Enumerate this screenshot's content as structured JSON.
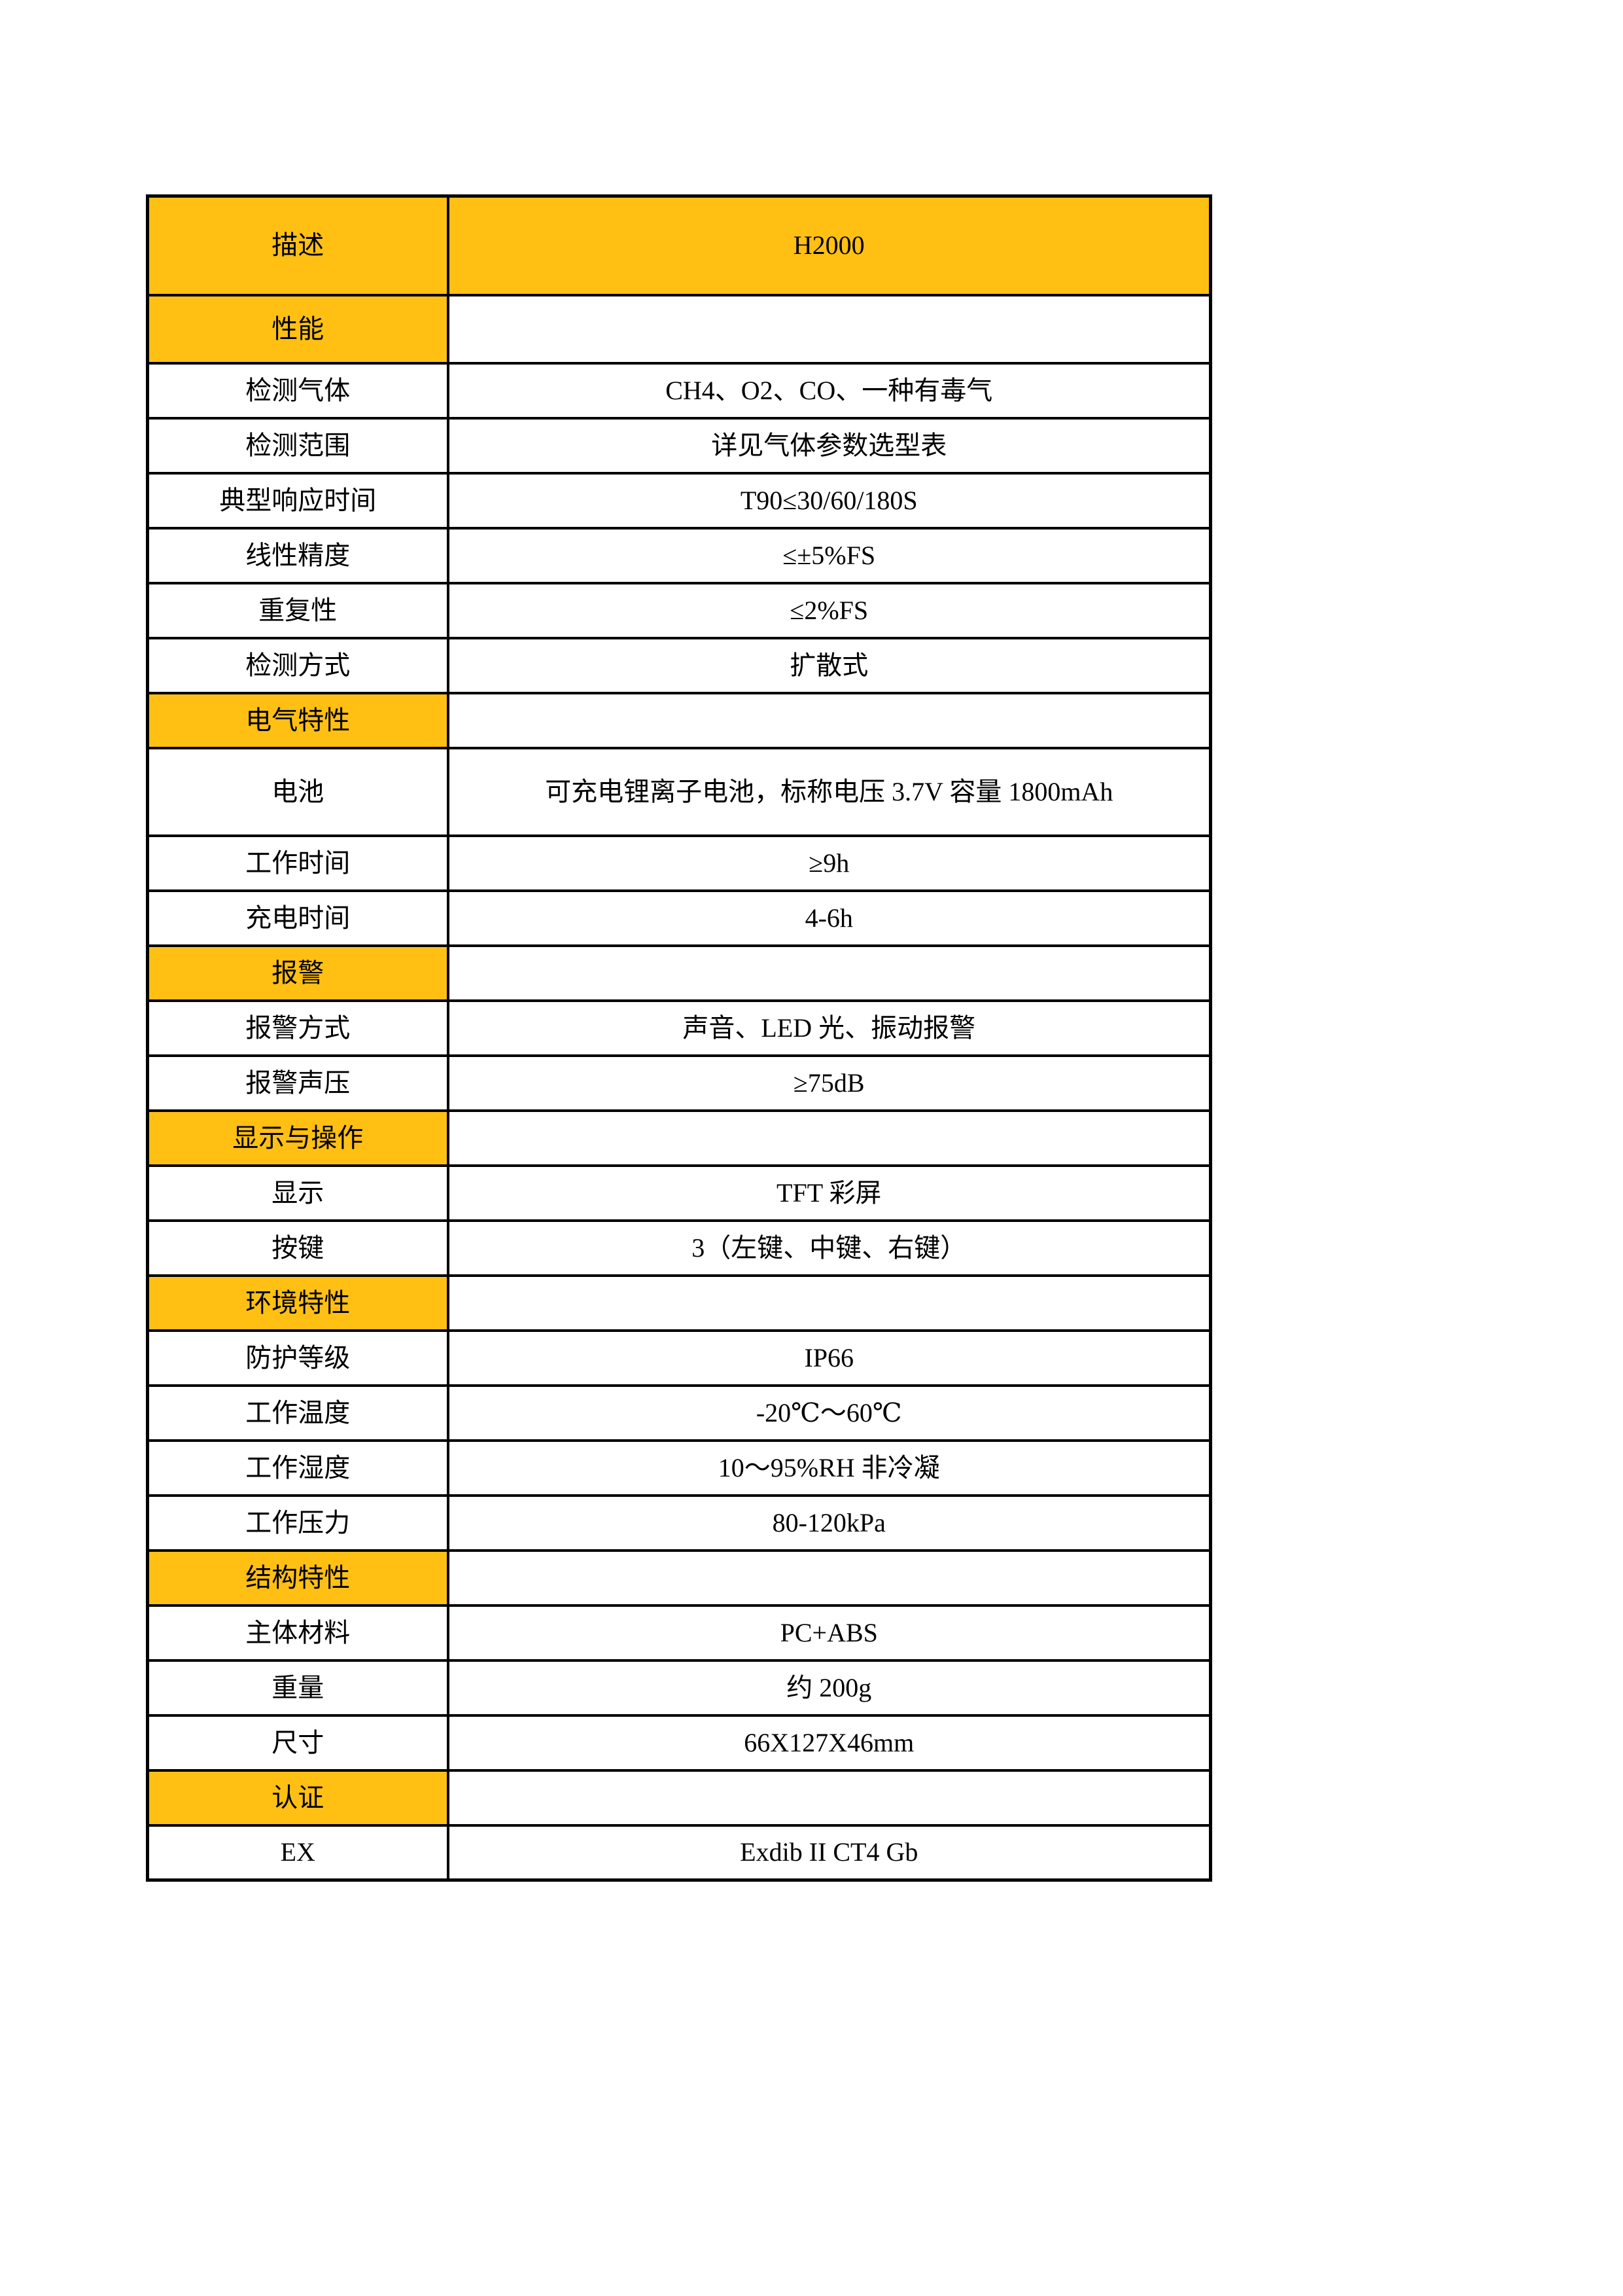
{
  "colors": {
    "accent": "#FFC013",
    "border": "#000000",
    "background": "#FFFFFF",
    "text": "#000000"
  },
  "table": {
    "header": {
      "label": "描述",
      "value": "H2000"
    },
    "rows": [
      {
        "kind": "section",
        "label": "性能",
        "value": ""
      },
      {
        "kind": "data",
        "label": "检测气体",
        "value": "CH4、O2、CO、一种有毒气"
      },
      {
        "kind": "data",
        "label": "检测范围",
        "value": "详见气体参数选型表"
      },
      {
        "kind": "data",
        "label": "典型响应时间",
        "value": "T90≤30/60/180S"
      },
      {
        "kind": "data",
        "label": "线性精度",
        "value": "≤±5%FS"
      },
      {
        "kind": "data",
        "label": "重复性",
        "value": "≤2%FS"
      },
      {
        "kind": "data",
        "label": "检测方式",
        "value": "扩散式"
      },
      {
        "kind": "section",
        "label": "电气特性",
        "value": ""
      },
      {
        "kind": "data",
        "label": "电池",
        "value": "可充电锂离子电池，标称电压 3.7V 容量 1800mAh"
      },
      {
        "kind": "data",
        "label": "工作时间",
        "value": "≥9h"
      },
      {
        "kind": "data",
        "label": "充电时间",
        "value": "4-6h"
      },
      {
        "kind": "section",
        "label": "报警",
        "value": ""
      },
      {
        "kind": "data",
        "label": "报警方式",
        "value": "声音、LED 光、振动报警"
      },
      {
        "kind": "data",
        "label": "报警声压",
        "value": "≥75dB"
      },
      {
        "kind": "section",
        "label": "显示与操作",
        "value": ""
      },
      {
        "kind": "data",
        "label": "显示",
        "value": "TFT 彩屏"
      },
      {
        "kind": "data",
        "label": "按键",
        "value": "3（左键、中键、右键）"
      },
      {
        "kind": "section",
        "label": "环境特性",
        "value": ""
      },
      {
        "kind": "data",
        "label": "防护等级",
        "value": "IP66"
      },
      {
        "kind": "data",
        "label": "工作温度",
        "value": "-20℃～60℃"
      },
      {
        "kind": "data",
        "label": "工作湿度",
        "value": "10～95%RH 非冷凝"
      },
      {
        "kind": "data",
        "label": "工作压力",
        "value": "80-120kPa"
      },
      {
        "kind": "section",
        "label": "结构特性",
        "value": ""
      },
      {
        "kind": "data",
        "label": "主体材料",
        "value": "PC+ABS"
      },
      {
        "kind": "data",
        "label": "重量",
        "value": "约 200g"
      },
      {
        "kind": "data",
        "label": "尺寸",
        "value": "66X127X46mm"
      },
      {
        "kind": "section",
        "label": "认证",
        "value": ""
      },
      {
        "kind": "data",
        "label": "EX",
        "value": "Exdib II CT4 Gb"
      }
    ]
  }
}
